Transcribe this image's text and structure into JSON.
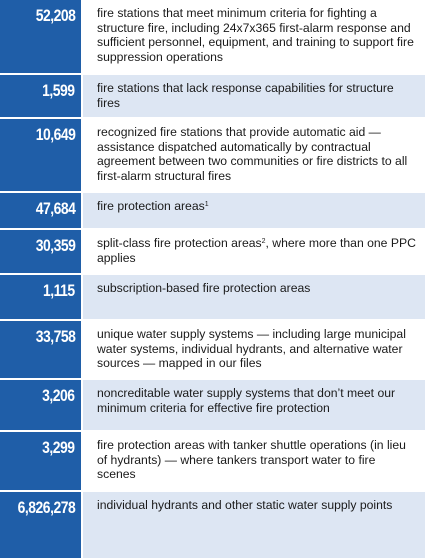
{
  "rows": [
    {
      "number": "52,208",
      "description": "fire stations that meet minimum criteria for fighting a structure fire, including 24x7x365 first-alarm response and sufficient personnel, equipment, and training to support fire suppression operations",
      "sup": ""
    },
    {
      "number": "1,599",
      "description": "fire stations that lack response capabilities for structure fires",
      "sup": ""
    },
    {
      "number": "10,649",
      "description": "recognized fire stations that provide automatic aid — assistance dispatched automatically by contractual agreement between two communities or fire districts to all first-alarm structural fires",
      "sup": ""
    },
    {
      "number": "47,684",
      "description": "fire protection areas",
      "sup": "1"
    },
    {
      "number": "30,359",
      "description_before": "split-class fire protection areas",
      "sup": "2",
      "description_after": ", where more than one PPC applies"
    },
    {
      "number": "1,115",
      "description": "subscription-based fire protection areas",
      "sup": ""
    },
    {
      "number": "33,758",
      "description": "unique water supply systems — including large municipal water systems, individual hydrants, and alternative water sources — mapped in our files",
      "sup": ""
    },
    {
      "number": "3,206",
      "description": "noncreditable water supply systems that don’t meet our minimum criteria for effective fire protection",
      "sup": ""
    },
    {
      "number": "3,299",
      "description": "fire protection areas with tanker shuttle operations (in lieu of hydrants) — where tankers transport water to fire scenes",
      "sup": ""
    },
    {
      "number": "6,826,278",
      "description": "individual hydrants and other static water supply points",
      "sup": ""
    }
  ],
  "colors": {
    "number_bg": "#1f5ea8",
    "shaded_bg": "#dde6f3",
    "text": "#1a1a1a"
  }
}
